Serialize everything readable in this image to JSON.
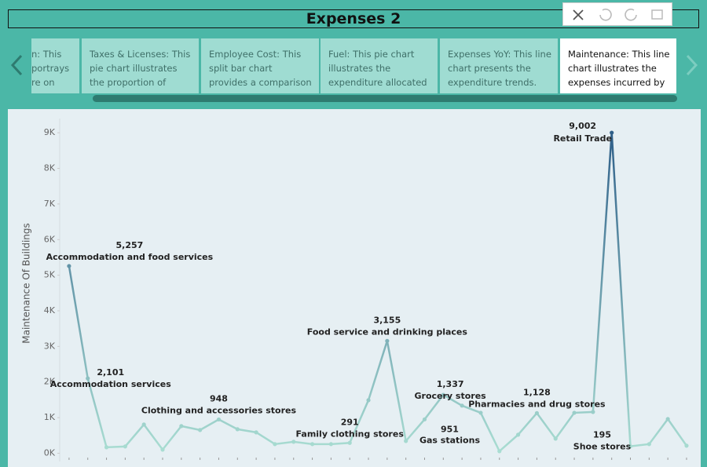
{
  "header": {
    "title": "Expenses 2"
  },
  "carousel": {
    "cards": [
      {
        "lines": [
          "n: This",
          "portrays",
          "re on"
        ]
      },
      {
        "lines": [
          "Taxes & Licenses: This",
          "pie chart illustrates",
          "the proportion of"
        ]
      },
      {
        "lines": [
          "Employee Cost: This",
          "split bar chart",
          "provides a comparison"
        ]
      },
      {
        "lines": [
          "Fuel: This pie chart",
          "illustrates the",
          "expenditure allocated"
        ]
      },
      {
        "lines": [
          "Expenses YoY: This line",
          "chart presents the",
          "expenditure trends."
        ]
      },
      {
        "lines": [
          "Maintenance: This line",
          "chart illustrates the",
          "expenses incurred by"
        ],
        "selected": true
      }
    ]
  },
  "chart_data": {
    "type": "line",
    "y_label": "Maintenance Of Buildings",
    "categories": [
      "Accommodation and food services",
      "Accommodation services",
      null,
      null,
      null,
      null,
      null,
      null,
      "Clothing and accessories stores",
      null,
      null,
      null,
      null,
      null,
      null,
      "Family clothing stores",
      null,
      "Food service and drinking places",
      null,
      "Gas stations",
      null,
      "Grocery stores",
      null,
      null,
      null,
      "Pharmacies and drug stores",
      null,
      null,
      null,
      "Retail Trade",
      "Shoe stores",
      null,
      null,
      null
    ],
    "values": [
      5257,
      2101,
      167,
      190,
      806,
      101,
      762,
      652,
      948,
      674,
      586,
      256,
      322,
      256,
      256,
      291,
      1489,
      3155,
      343,
      951,
      1640,
      1337,
      1136,
      57,
      520,
      1128,
      410,
      1136,
      1159,
      9002,
      195,
      256,
      960,
      211
    ],
    "value_labels": [
      "5,257",
      "2,101",
      null,
      null,
      null,
      null,
      null,
      null,
      "948",
      null,
      null,
      null,
      null,
      null,
      null,
      "291",
      null,
      "3,155",
      null,
      "951",
      null,
      "1,337",
      null,
      null,
      null,
      "1,128",
      null,
      null,
      null,
      "9,002",
      "195",
      null,
      null,
      null
    ],
    "color_low": "#abdfd3",
    "color_high": "#2a5a86",
    "ylim": [
      -100,
      9400
    ],
    "yticks": [
      {
        "value": 0,
        "label": "0K"
      },
      {
        "value": 1000,
        "label": "1K"
      },
      {
        "value": 2000,
        "label": "2K"
      },
      {
        "value": 3000,
        "label": "3K"
      },
      {
        "value": 4000,
        "label": "4K"
      },
      {
        "value": 5000,
        "label": "5K"
      },
      {
        "value": 6000,
        "label": "6K"
      },
      {
        "value": 7000,
        "label": "7K"
      },
      {
        "value": 8000,
        "label": "8K"
      },
      {
        "value": 9000,
        "label": "9K"
      }
    ],
    "grid": false
  }
}
